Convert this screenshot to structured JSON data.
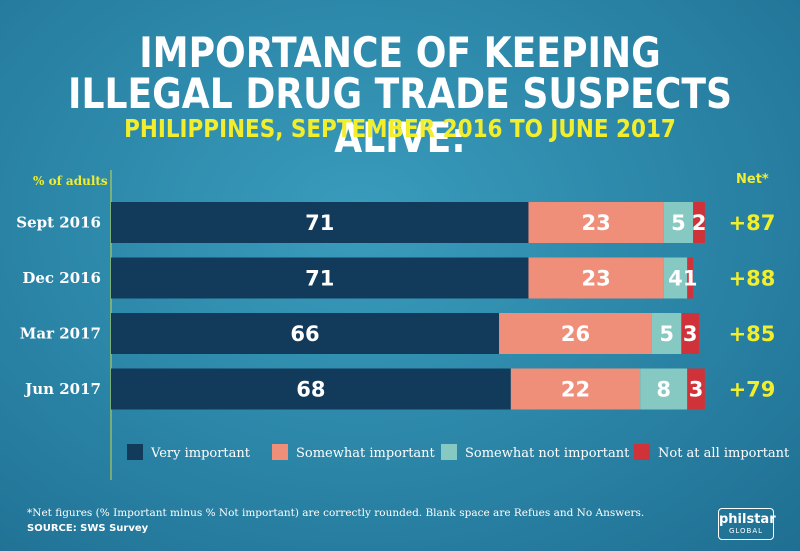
{
  "title_line1": "IMPORTANCE OF KEEPING",
  "title_line2": "ILLEGAL DRUG TRADE SUSPECTS ALIVE:",
  "subtitle": "PHILIPPINES, SEPTEMBER 2016 TO JUNE 2017",
  "axis_label": "% of adults",
  "net_header": "Net*",
  "footnote": "*Net figures (% Important minus % Not important) are correctly rounded. Blank space are Refues and No Answers.",
  "source": "SOURCE: SWS Survey",
  "logo": {
    "line1": "philstar",
    "line2": "GLOBAL"
  },
  "colors": {
    "very_important": "#123a5a",
    "somewhat_important": "#f08f79",
    "somewhat_not_important": "#86c8c2",
    "not_at_all_important": "#cf3339",
    "net": "#f2ee2c"
  },
  "chart_data": {
    "type": "bar",
    "orientation": "horizontal",
    "stacked": true,
    "xlim": [
      0,
      100
    ],
    "categories": [
      "Sept 2016",
      "Dec 2016",
      "Mar 2017",
      "Jun 2017"
    ],
    "series": [
      {
        "name": "Very important",
        "values": [
          71,
          71,
          66,
          68
        ]
      },
      {
        "name": "Somewhat important",
        "values": [
          23,
          23,
          26,
          22
        ]
      },
      {
        "name": "Somewhat not important",
        "values": [
          5,
          4,
          5,
          8
        ]
      },
      {
        "name": "Not at all important",
        "values": [
          2,
          1,
          3,
          3
        ]
      }
    ],
    "net": [
      "+87",
      "+88",
      "+85",
      "+79"
    ],
    "legend_position": "bottom"
  }
}
